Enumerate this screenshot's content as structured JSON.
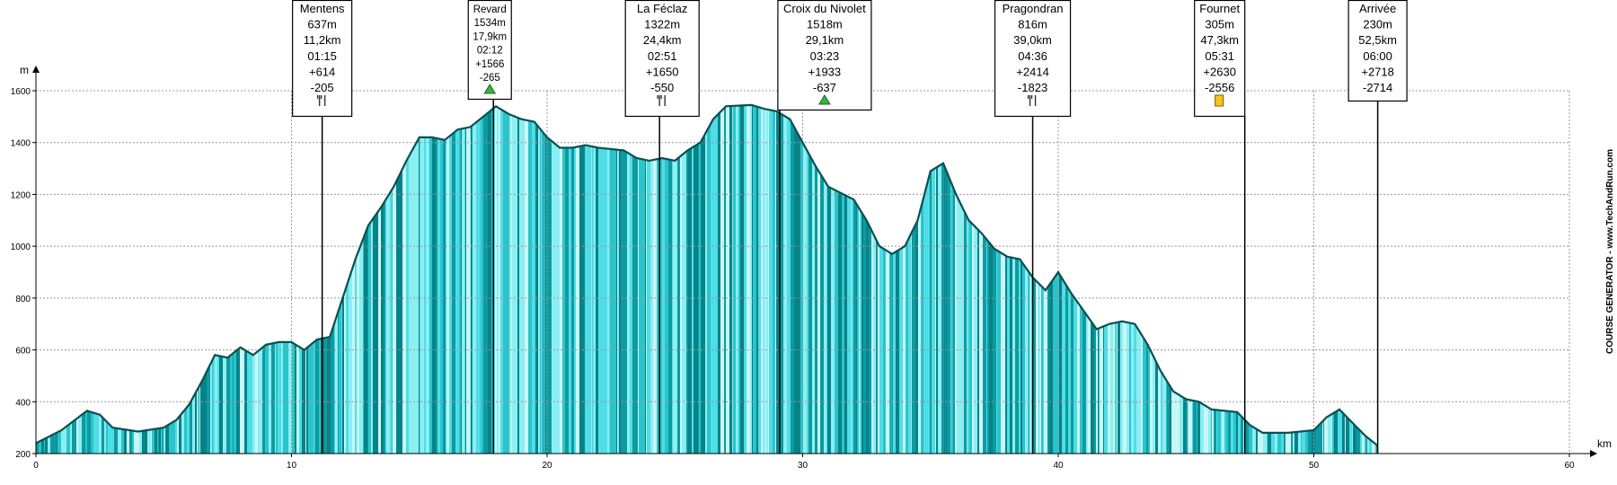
{
  "chart_data": {
    "type": "area",
    "y_label": "m",
    "x_label": "km",
    "watermark": "COURSE GENERATOR - www.TechAndRun.com",
    "xlim": [
      0,
      60
    ],
    "ylim": [
      200,
      1600
    ],
    "xticks": [
      0,
      10,
      20,
      30,
      40,
      50,
      60
    ],
    "yticks": [
      200,
      400,
      600,
      800,
      1000,
      1200,
      1400,
      1600
    ],
    "grid": true,
    "color": "#4fdde6",
    "line_color": "#0b4f50",
    "x": [
      0,
      1,
      2,
      2.5,
      3,
      4,
      5,
      5.5,
      6,
      6.5,
      7,
      7.5,
      8,
      8.5,
      9,
      9.5,
      10,
      10.5,
      11,
      11.5,
      12,
      12.5,
      13,
      13.5,
      14,
      14.5,
      15,
      15.5,
      16,
      16.5,
      17,
      17.5,
      18,
      18.5,
      19,
      19.5,
      20,
      20.5,
      21,
      21.5,
      22,
      23,
      23.5,
      24,
      24.5,
      25,
      25.5,
      26,
      26.5,
      27,
      28,
      28.5,
      29,
      29.5,
      30,
      30.5,
      31,
      32,
      32.5,
      33,
      33.5,
      34,
      34.5,
      35,
      35.5,
      36,
      36.5,
      37,
      37.5,
      38,
      38.5,
      39,
      39.5,
      40,
      40.5,
      41,
      41.5,
      42,
      42.5,
      43,
      43.5,
      44,
      44.5,
      45,
      45.5,
      46,
      47,
      47.5,
      48,
      49,
      50,
      50.5,
      51,
      51.5,
      52,
      52.5
    ],
    "values": [
      240,
      290,
      365,
      350,
      300,
      285,
      300,
      330,
      390,
      480,
      580,
      570,
      610,
      580,
      620,
      630,
      630,
      600,
      640,
      650,
      800,
      950,
      1080,
      1150,
      1230,
      1330,
      1420,
      1420,
      1410,
      1450,
      1460,
      1500,
      1540,
      1510,
      1490,
      1480,
      1420,
      1380,
      1380,
      1390,
      1380,
      1370,
      1340,
      1330,
      1340,
      1330,
      1370,
      1400,
      1490,
      1540,
      1545,
      1530,
      1520,
      1490,
      1400,
      1310,
      1230,
      1180,
      1100,
      1000,
      970,
      1000,
      1100,
      1290,
      1320,
      1200,
      1100,
      1050,
      990,
      960,
      950,
      880,
      830,
      900,
      820,
      750,
      680,
      700,
      710,
      700,
      620,
      520,
      440,
      410,
      400,
      370,
      360,
      310,
      280,
      280,
      290,
      340,
      370,
      320,
      270,
      230
    ],
    "waypoints": [
      {
        "name": "Mentens",
        "altitude": "637m",
        "distance": {
          "value": 11.2,
          "label": "11,2km"
        },
        "time": "01:15",
        "gain": "+614",
        "loss": "-205"
      },
      {
        "name": "Revard",
        "altitude": "1534m",
        "distance": {
          "value": 17.9,
          "label": "17,9km"
        },
        "time": "02:12",
        "gain": "+1566",
        "loss": "-265"
      },
      {
        "name": "La Féclaz",
        "altitude": "1322m",
        "distance": {
          "value": 24.4,
          "label": "24,4km"
        },
        "time": "02:51",
        "gain": "+1650",
        "loss": "-550"
      },
      {
        "name": "Croix du Nivolet",
        "altitude": "1518m",
        "distance": {
          "value": 29.1,
          "label": "29,1km"
        },
        "time": "03:23",
        "gain": "+1933",
        "loss": "-637"
      },
      {
        "name": "Pragondran",
        "altitude": "816m",
        "distance": {
          "value": 39.0,
          "label": "39,0km"
        },
        "time": "04:36",
        "gain": "+2414",
        "loss": "-1823"
      },
      {
        "name": "Fournet",
        "altitude": "305m",
        "distance": {
          "value": 47.3,
          "label": "47,3km"
        },
        "time": "05:31",
        "gain": "+2630",
        "loss": "-2556"
      },
      {
        "name": "Arrivée",
        "altitude": "230m",
        "distance": {
          "value": 52.5,
          "label": "52,5km"
        },
        "time": "06:00",
        "gain": "+2718",
        "loss": "-2714"
      }
    ]
  }
}
